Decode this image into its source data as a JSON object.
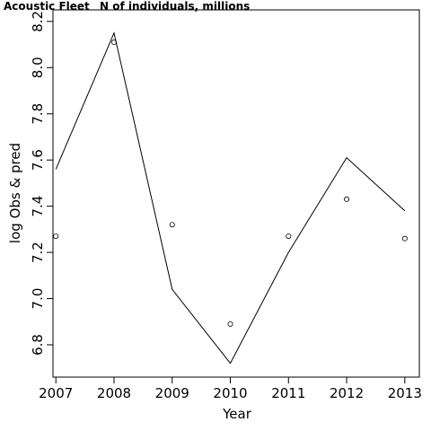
{
  "chart_data": {
    "type": "line",
    "title": "Acoustic Fleet",
    "subtitle": "N of individuals, millions",
    "xlabel": "Year",
    "ylabel": "log Obs & pred",
    "x": [
      2007,
      2008,
      2009,
      2010,
      2011,
      2012,
      2013
    ],
    "x_ticks": [
      "2007",
      "2008",
      "2009",
      "2010",
      "2011",
      "2012",
      "2013"
    ],
    "y_ticks": [
      "6.8",
      "7.0",
      "7.2",
      "7.4",
      "7.6",
      "7.8",
      "8.0",
      "8.2"
    ],
    "xlim": [
      2006.95,
      2013.25
    ],
    "ylim": [
      6.66,
      8.25
    ],
    "series": [
      {
        "style": "points",
        "marker": "open-circle",
        "values": [
          7.27,
          8.11,
          7.32,
          6.89,
          7.27,
          7.43,
          7.26
        ]
      },
      {
        "style": "line",
        "values": [
          7.56,
          8.15,
          7.04,
          6.72,
          7.2,
          7.61,
          7.38
        ]
      }
    ],
    "grid": false,
    "legend": "none",
    "colors": {
      "line": "#000000",
      "points": "#000000",
      "axes": "#000000",
      "background": "#ffffff"
    }
  }
}
